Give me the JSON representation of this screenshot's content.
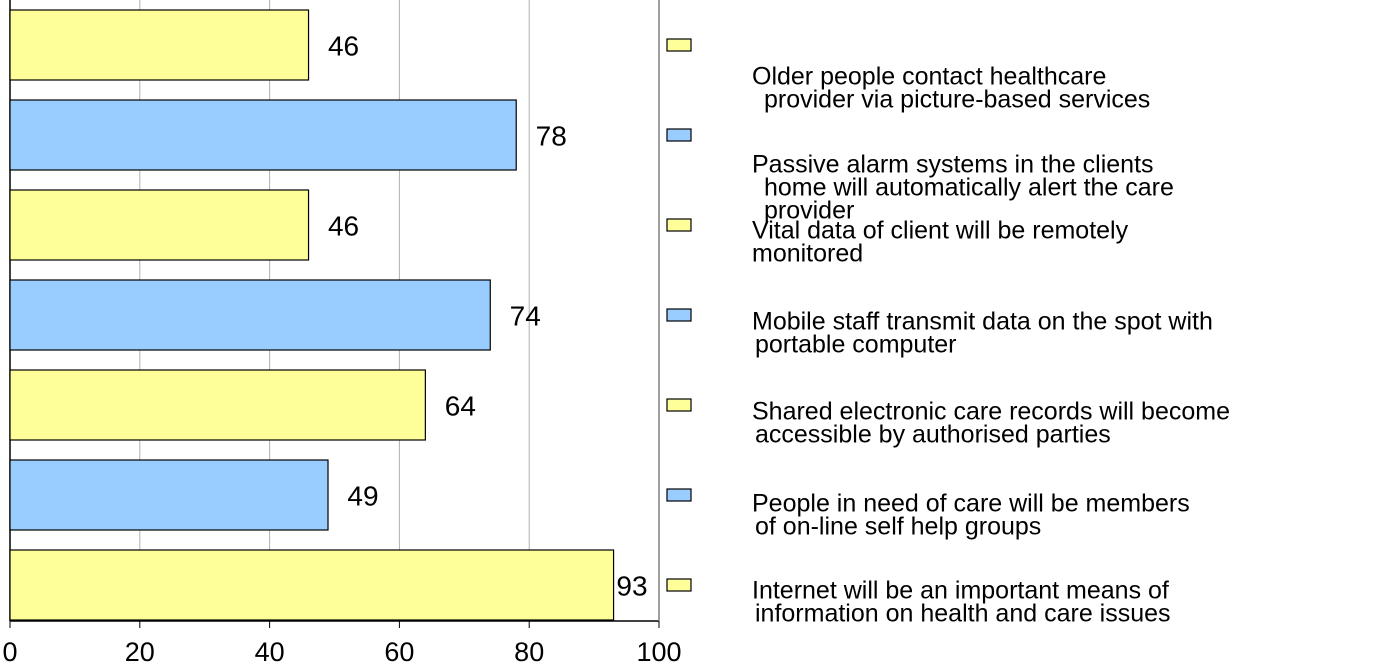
{
  "chart_data": {
    "type": "bar",
    "orientation": "horizontal",
    "categories": [
      [
        "Older people contact healthcare",
        "provider via picture-based services"
      ],
      [
        "Passive alarm systems in the clients",
        "home will automatically alert the care",
        "provider"
      ],
      [
        "Vital data of client will be remotely",
        "monitored"
      ],
      [
        "Mobile staff transmit data on the spot with",
        "portable computer"
      ],
      [
        "Shared electronic care records will become",
        "accessible by authorised parties"
      ],
      [
        "People in need of care will be members",
        "of on-line self help groups"
      ],
      [
        "Internet will be an important means of",
        "information on health and care issues"
      ]
    ],
    "values": [
      46,
      78,
      46,
      74,
      64,
      49,
      93
    ],
    "colors": [
      "#ffff99",
      "#99ccff",
      "#ffff99",
      "#99ccff",
      "#ffff99",
      "#99ccff",
      "#ffff99"
    ],
    "xlim": [
      0,
      100
    ],
    "xticks": [
      0,
      20,
      40,
      60,
      80,
      100
    ],
    "grid": true
  }
}
